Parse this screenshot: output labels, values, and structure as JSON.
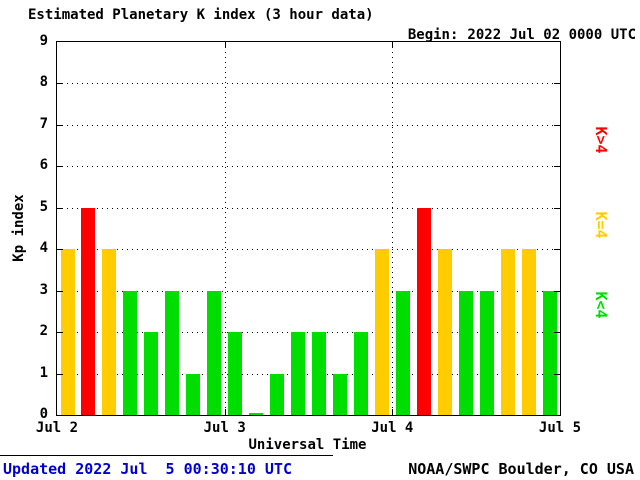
{
  "title": "Estimated Planetary K index (3 hour data)",
  "begin_label": "Begin:",
  "begin_value": "2022 Jul 02 0000 UTC",
  "footer": {
    "updated": "Updated 2022 Jul  5 00:30:10 UTC",
    "credit": "NOAA/SWPC Boulder, CO USA"
  },
  "colors": {
    "high": "#ff0000",
    "mid": "#ffcc00",
    "low": "#00dd00",
    "updated_text": "#0000cc",
    "axis": "#000000"
  },
  "legend": [
    {
      "label": "K>4",
      "color": "#ff0000"
    },
    {
      "label": "K=4",
      "color": "#ffcc00"
    },
    {
      "label": "K<4",
      "color": "#00dd00"
    }
  ],
  "chart_data": {
    "type": "bar",
    "title": "Estimated Planetary K index (3 hour data)",
    "begin": "2022 Jul 02 0000 UTC",
    "xlabel": "Universal Time",
    "ylabel": "Kp index",
    "ylim": [
      0,
      9
    ],
    "y_ticks": [
      0,
      1,
      2,
      3,
      4,
      5,
      6,
      7,
      8,
      9
    ],
    "x_ticks": [
      "Jul 2",
      "Jul 3",
      "Jul 4",
      "Jul 5"
    ],
    "bar_interval_hours": 3,
    "grid": "dotted",
    "legend_position": "right",
    "days": [
      {
        "date": "Jul 2",
        "values": [
          4,
          5,
          4,
          3,
          2,
          3,
          1,
          3
        ]
      },
      {
        "date": "Jul 3",
        "values": [
          2,
          0,
          1,
          2,
          2,
          1,
          2,
          4
        ]
      },
      {
        "date": "Jul 4",
        "values": [
          3,
          5,
          4,
          3,
          3,
          4,
          4,
          3
        ]
      }
    ],
    "color_rule": {
      "k_gt_4": "#ff0000",
      "k_eq_4": "#ffcc00",
      "k_lt_4": "#00dd00"
    }
  }
}
